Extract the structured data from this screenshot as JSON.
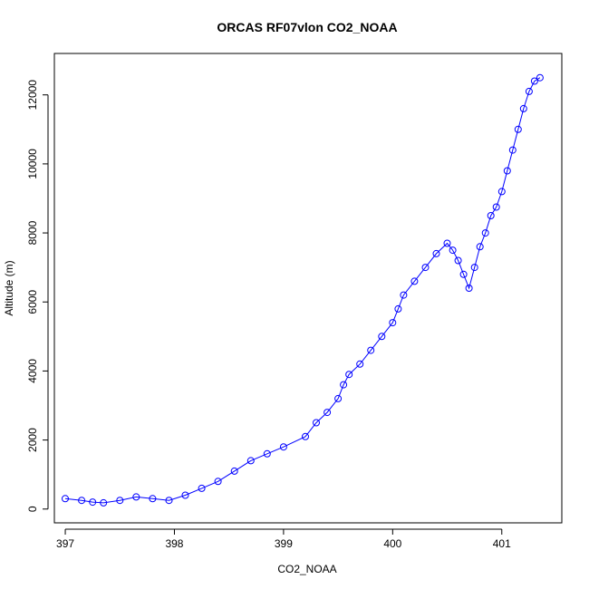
{
  "chart_data": {
    "type": "scatter",
    "title": "ORCAS RF07vlon CO2_NOAA",
    "xlabel": "CO2_NOAA",
    "ylabel": "Altitude (m)",
    "xlim": [
      396.9,
      401.55
    ],
    "ylim": [
      -400,
      13200
    ],
    "xticks": [
      397,
      398,
      399,
      400,
      401
    ],
    "yticks": [
      0,
      2000,
      4000,
      6000,
      8000,
      10000,
      12000
    ],
    "grid": false,
    "legend": "none",
    "marker": "open-circle",
    "connect_points": true,
    "color": "#0000ff",
    "series": [
      {
        "x": [
          397.0,
          397.15,
          397.25,
          397.35,
          397.5,
          397.65,
          397.8,
          397.95,
          398.1,
          398.25,
          398.4,
          398.55,
          398.7,
          398.85,
          399.0,
          399.2,
          399.3,
          399.4,
          399.5,
          399.55,
          399.6,
          399.7,
          399.8,
          399.9,
          400.0,
          400.05,
          400.1,
          400.2,
          400.3,
          400.4,
          400.5,
          400.55,
          400.6,
          400.65,
          400.7,
          400.75,
          400.8,
          400.85,
          400.9,
          400.95,
          401.0,
          401.05,
          401.1,
          401.15,
          401.2,
          401.25,
          401.3,
          401.35
        ],
        "y": [
          300,
          250,
          200,
          180,
          250,
          350,
          300,
          250,
          400,
          600,
          800,
          1100,
          1400,
          1600,
          1800,
          2100,
          2500,
          2800,
          3200,
          3600,
          3900,
          4200,
          4600,
          5000,
          5400,
          5800,
          6200,
          6600,
          7000,
          7400,
          7700,
          7500,
          7200,
          6800,
          6400,
          7000,
          7600,
          8000,
          8500,
          8750,
          9200,
          9800,
          10400,
          11000,
          11600,
          12100,
          12400,
          12500
        ]
      }
    ]
  }
}
